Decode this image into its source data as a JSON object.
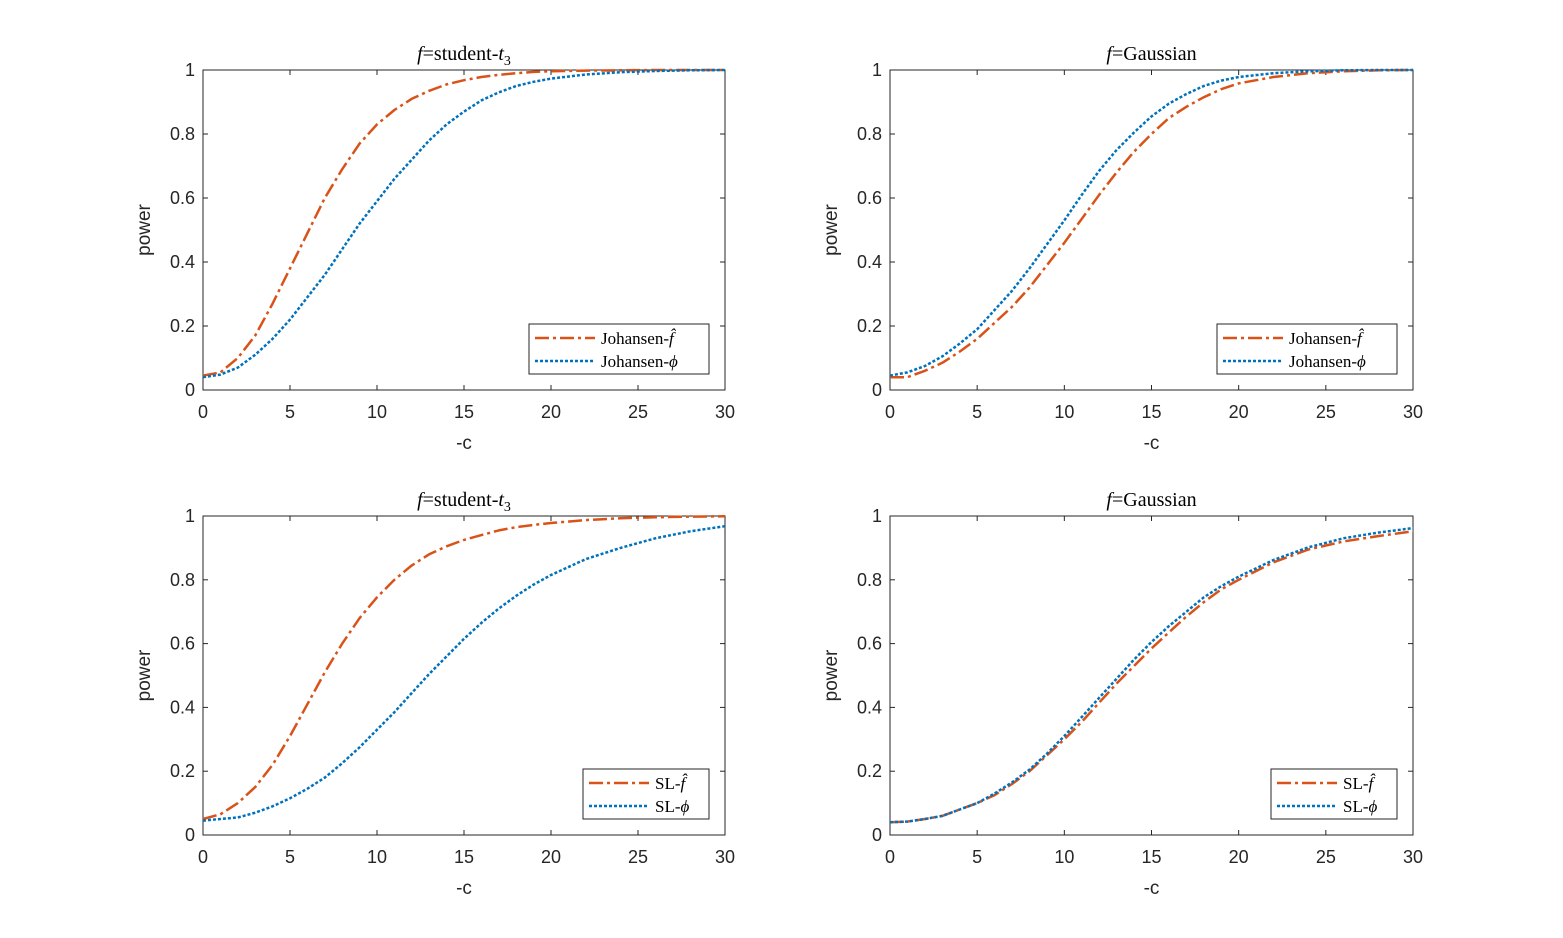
{
  "chart_data": [
    {
      "type": "line",
      "title": {
        "prefix": "f",
        "eq": "=",
        "main": "student-",
        "var": "t",
        "sub": "3"
      },
      "xlabel": "-c",
      "ylabel": "power",
      "xlim": [
        0,
        30
      ],
      "ylim": [
        0,
        1
      ],
      "xticks": [
        0,
        5,
        10,
        15,
        20,
        25,
        30
      ],
      "yticks": [
        0,
        0.2,
        0.4,
        0.6,
        0.8,
        1
      ],
      "legend_position": "bottom-right",
      "series": [
        {
          "name": "Johansen-",
          "symbol": "f̂",
          "color": "#D95319",
          "style": "dashdot",
          "x": [
            0,
            1,
            2,
            3,
            4,
            5,
            6,
            7,
            8,
            9,
            10,
            11,
            12,
            13,
            14,
            15,
            16,
            17,
            18,
            19,
            20,
            22,
            24,
            26,
            28,
            30
          ],
          "y": [
            0.045,
            0.055,
            0.1,
            0.17,
            0.27,
            0.38,
            0.49,
            0.6,
            0.69,
            0.77,
            0.83,
            0.875,
            0.91,
            0.935,
            0.955,
            0.968,
            0.978,
            0.985,
            0.99,
            0.994,
            0.996,
            0.998,
            0.999,
            1.0,
            1.0,
            1.0
          ]
        },
        {
          "name": "Johansen-",
          "symbol": "ϕ",
          "color": "#0072BD",
          "style": "dotted",
          "x": [
            0,
            1,
            2,
            3,
            4,
            5,
            6,
            7,
            8,
            9,
            10,
            11,
            12,
            13,
            14,
            15,
            16,
            17,
            18,
            19,
            20,
            22,
            24,
            26,
            28,
            30
          ],
          "y": [
            0.04,
            0.048,
            0.07,
            0.11,
            0.16,
            0.22,
            0.29,
            0.36,
            0.44,
            0.52,
            0.59,
            0.66,
            0.72,
            0.78,
            0.83,
            0.87,
            0.905,
            0.93,
            0.95,
            0.963,
            0.973,
            0.986,
            0.993,
            0.997,
            0.999,
            1.0
          ]
        }
      ]
    },
    {
      "type": "line",
      "title": {
        "prefix": "f",
        "eq": "=",
        "main": "Gaussian",
        "var": "",
        "sub": ""
      },
      "xlabel": "-c",
      "ylabel": "power",
      "xlim": [
        0,
        30
      ],
      "ylim": [
        0,
        1
      ],
      "xticks": [
        0,
        5,
        10,
        15,
        20,
        25,
        30
      ],
      "yticks": [
        0,
        0.2,
        0.4,
        0.6,
        0.8,
        1
      ],
      "legend_position": "bottom-right",
      "series": [
        {
          "name": "Johansen-",
          "symbol": "f̂",
          "color": "#D95319",
          "style": "dashdot",
          "x": [
            0,
            1,
            2,
            3,
            4,
            5,
            6,
            7,
            8,
            9,
            10,
            11,
            12,
            13,
            14,
            15,
            16,
            17,
            18,
            19,
            20,
            22,
            24,
            26,
            28,
            30
          ],
          "y": [
            0.04,
            0.04,
            0.06,
            0.085,
            0.12,
            0.16,
            0.21,
            0.26,
            0.32,
            0.39,
            0.46,
            0.535,
            0.61,
            0.68,
            0.745,
            0.8,
            0.85,
            0.885,
            0.915,
            0.94,
            0.958,
            0.978,
            0.99,
            0.996,
            0.999,
            1.0
          ]
        },
        {
          "name": "Johansen-",
          "symbol": "ϕ",
          "color": "#0072BD",
          "style": "dotted",
          "x": [
            0,
            1,
            2,
            3,
            4,
            5,
            6,
            7,
            8,
            9,
            10,
            11,
            12,
            13,
            14,
            15,
            16,
            17,
            18,
            19,
            20,
            22,
            24,
            26,
            28,
            30
          ],
          "y": [
            0.045,
            0.055,
            0.075,
            0.105,
            0.145,
            0.19,
            0.25,
            0.31,
            0.38,
            0.455,
            0.53,
            0.61,
            0.685,
            0.75,
            0.805,
            0.855,
            0.895,
            0.925,
            0.95,
            0.967,
            0.978,
            0.99,
            0.996,
            0.999,
            1.0,
            1.0
          ]
        }
      ]
    },
    {
      "type": "line",
      "title": {
        "prefix": "f",
        "eq": "=",
        "main": "student-",
        "var": "t",
        "sub": "3"
      },
      "xlabel": "-c",
      "ylabel": "power",
      "xlim": [
        0,
        30
      ],
      "ylim": [
        0,
        1
      ],
      "xticks": [
        0,
        5,
        10,
        15,
        20,
        25,
        30
      ],
      "yticks": [
        0,
        0.2,
        0.4,
        0.6,
        0.8,
        1
      ],
      "legend_position": "bottom-right",
      "series": [
        {
          "name": "SL-",
          "symbol": "f̂",
          "color": "#D95319",
          "style": "dashdot",
          "x": [
            0,
            1,
            2,
            3,
            4,
            5,
            6,
            7,
            8,
            9,
            10,
            11,
            12,
            13,
            14,
            15,
            16,
            17,
            18,
            19,
            20,
            22,
            24,
            26,
            28,
            30
          ],
          "y": [
            0.05,
            0.065,
            0.1,
            0.15,
            0.22,
            0.31,
            0.41,
            0.51,
            0.6,
            0.68,
            0.745,
            0.8,
            0.845,
            0.88,
            0.905,
            0.925,
            0.94,
            0.955,
            0.965,
            0.972,
            0.978,
            0.987,
            0.993,
            0.996,
            0.998,
            0.999
          ]
        },
        {
          "name": "SL-",
          "symbol": "ϕ",
          "color": "#0072BD",
          "style": "dotted",
          "x": [
            0,
            1,
            2,
            3,
            4,
            5,
            6,
            7,
            8,
            9,
            10,
            11,
            12,
            13,
            14,
            15,
            16,
            17,
            18,
            19,
            20,
            22,
            24,
            26,
            28,
            30
          ],
          "y": [
            0.045,
            0.05,
            0.055,
            0.07,
            0.09,
            0.115,
            0.145,
            0.18,
            0.225,
            0.275,
            0.33,
            0.385,
            0.445,
            0.505,
            0.56,
            0.615,
            0.665,
            0.71,
            0.75,
            0.785,
            0.815,
            0.865,
            0.9,
            0.93,
            0.952,
            0.968
          ]
        }
      ]
    },
    {
      "type": "line",
      "title": {
        "prefix": "f",
        "eq": "=",
        "main": "Gaussian",
        "var": "",
        "sub": ""
      },
      "xlabel": "-c",
      "ylabel": "power",
      "xlim": [
        0,
        30
      ],
      "ylim": [
        0,
        1
      ],
      "xticks": [
        0,
        5,
        10,
        15,
        20,
        25,
        30
      ],
      "yticks": [
        0,
        0.2,
        0.4,
        0.6,
        0.8,
        1
      ],
      "legend_position": "bottom-right",
      "series": [
        {
          "name": "SL-",
          "symbol": "f̂",
          "color": "#D95319",
          "style": "dashdot",
          "x": [
            0,
            1,
            2,
            3,
            4,
            5,
            6,
            7,
            8,
            9,
            10,
            11,
            12,
            13,
            14,
            15,
            16,
            17,
            18,
            19,
            20,
            22,
            24,
            26,
            28,
            30
          ],
          "y": [
            0.04,
            0.042,
            0.05,
            0.06,
            0.08,
            0.1,
            0.125,
            0.16,
            0.2,
            0.25,
            0.3,
            0.355,
            0.415,
            0.475,
            0.53,
            0.585,
            0.635,
            0.685,
            0.73,
            0.77,
            0.8,
            0.855,
            0.895,
            0.92,
            0.937,
            0.952
          ]
        },
        {
          "name": "SL-",
          "symbol": "ϕ",
          "color": "#0072BD",
          "style": "dotted",
          "x": [
            0,
            1,
            2,
            3,
            4,
            5,
            6,
            7,
            8,
            9,
            10,
            11,
            12,
            13,
            14,
            15,
            16,
            17,
            18,
            19,
            20,
            22,
            24,
            26,
            28,
            30
          ],
          "y": [
            0.04,
            0.042,
            0.05,
            0.06,
            0.08,
            0.1,
            0.13,
            0.165,
            0.205,
            0.255,
            0.31,
            0.37,
            0.43,
            0.49,
            0.55,
            0.605,
            0.655,
            0.7,
            0.745,
            0.78,
            0.81,
            0.862,
            0.902,
            0.93,
            0.948,
            0.962
          ]
        }
      ]
    }
  ]
}
